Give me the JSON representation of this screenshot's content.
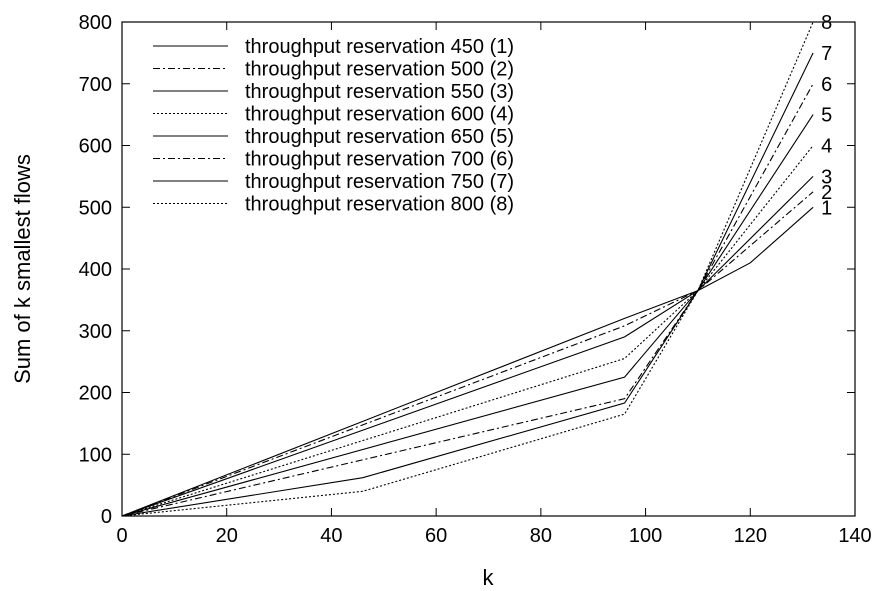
{
  "chart_data": {
    "type": "line",
    "title": "",
    "xlabel": "k",
    "ylabel": "Sum of k smallest flows",
    "xlim": [
      0,
      140
    ],
    "ylim": [
      0,
      800
    ],
    "xticks": [
      0,
      20,
      40,
      60,
      80,
      100,
      120,
      140
    ],
    "yticks": [
      0,
      100,
      200,
      300,
      400,
      500,
      600,
      700,
      800
    ],
    "grid": false,
    "legend_position": "top-left",
    "series": [
      {
        "name": "throughput reservation 450 (1)",
        "end_label": "1",
        "dash": "solid",
        "x": [
          0,
          96,
          110,
          120,
          132
        ],
        "y": [
          0,
          320,
          365,
          410,
          500
        ]
      },
      {
        "name": "throughput reservation 500 (2)",
        "end_label": "2",
        "dash": "dashdot",
        "x": [
          0,
          96,
          110,
          132
        ],
        "y": [
          0,
          308,
          365,
          525
        ]
      },
      {
        "name": "throughput reservation 550 (3)",
        "end_label": "3",
        "dash": "solid",
        "x": [
          0,
          96,
          110,
          132
        ],
        "y": [
          0,
          290,
          365,
          550
        ]
      },
      {
        "name": "throughput reservation 600 (4)",
        "end_label": "4",
        "dash": "dotted",
        "x": [
          0,
          96,
          110,
          132
        ],
        "y": [
          0,
          255,
          365,
          600
        ]
      },
      {
        "name": "throughput reservation 650 (5)",
        "end_label": "5",
        "dash": "solid",
        "x": [
          0,
          96,
          110,
          132
        ],
        "y": [
          0,
          225,
          365,
          650
        ]
      },
      {
        "name": "throughput reservation 700 (6)",
        "end_label": "6",
        "dash": "dashdot",
        "x": [
          0,
          96,
          110,
          132
        ],
        "y": [
          0,
          190,
          365,
          700
        ]
      },
      {
        "name": "throughput reservation 750 (7)",
        "end_label": "7",
        "dash": "solid",
        "x": [
          0,
          46,
          96,
          110,
          132
        ],
        "y": [
          0,
          62,
          183,
          365,
          750
        ]
      },
      {
        "name": "throughput reservation 800 (8)",
        "end_label": "8",
        "dash": "dotted",
        "x": [
          0,
          46,
          96,
          110,
          132
        ],
        "y": [
          0,
          40,
          165,
          365,
          800
        ]
      }
    ]
  }
}
